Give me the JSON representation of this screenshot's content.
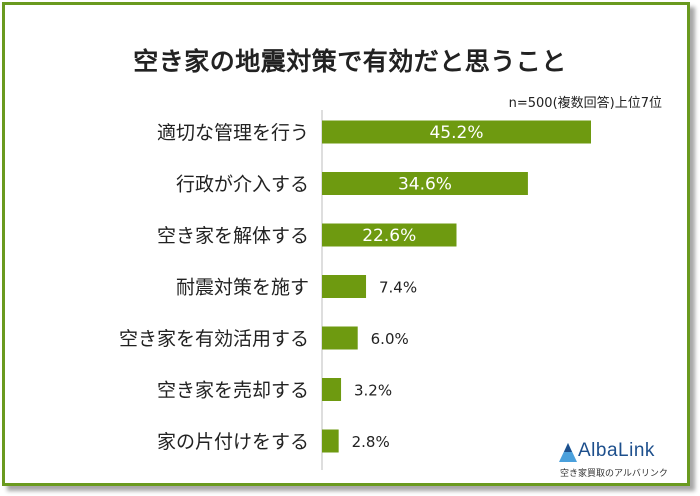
{
  "chart_data": {
    "type": "bar",
    "orientation": "horizontal",
    "title": "空き家の地震対策で有効だと思うこと",
    "subtitle": "n=500(複数回答)上位7位",
    "categories": [
      "適切な管理を行う",
      "行政が介入する",
      "空き家を解体する",
      "耐震対策を施す",
      "空き家を有効活用する",
      "空き家を売却する",
      "家の片付けをする"
    ],
    "values": [
      45.2,
      34.6,
      22.6,
      7.4,
      6.0,
      3.2,
      2.8
    ],
    "value_labels": [
      "45.2%",
      "34.6%",
      "22.6%",
      "7.4%",
      "6.0%",
      "3.2%",
      "2.8%"
    ],
    "bar_color": "#6e9a10",
    "grid": false,
    "legend": "none"
  },
  "logo": {
    "name": "AlbaLink",
    "tagline": "空き家買取のアルバリンク",
    "colors": [
      "#1d4f8c",
      "#4aa0dc"
    ]
  }
}
